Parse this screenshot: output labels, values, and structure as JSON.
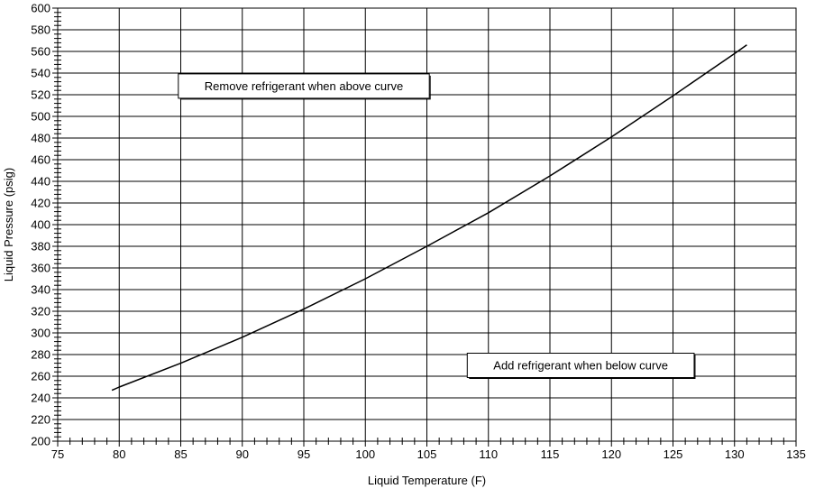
{
  "chart_data": {
    "type": "line",
    "title": "",
    "xlabel": "Liquid Temperature (F)",
    "ylabel": "Liquid Pressure (psig)",
    "xlim": [
      75,
      135
    ],
    "ylim": [
      200,
      600
    ],
    "x_ticks": [
      75,
      80,
      85,
      90,
      95,
      100,
      105,
      110,
      115,
      120,
      125,
      130,
      135
    ],
    "y_ticks": [
      200,
      220,
      240,
      260,
      280,
      300,
      320,
      340,
      360,
      380,
      400,
      420,
      440,
      460,
      480,
      500,
      520,
      540,
      560,
      580,
      600
    ],
    "x_minor_step": 1,
    "y_minor_step": 4,
    "grid": true,
    "legend": "none",
    "line_color": "#000000",
    "series": [
      {
        "x": [
          79.4,
          80,
          85,
          90,
          95,
          100,
          105,
          110,
          115,
          120,
          125,
          130,
          131
        ],
        "y": [
          247,
          250,
          272,
          296,
          322,
          350,
          380,
          411,
          445,
          481,
          519,
          558,
          566
        ]
      }
    ],
    "annotations": [
      {
        "text": "Remove refrigerant when above curve",
        "x": 95,
        "y": 528
      },
      {
        "text": "Add refrigerant when below curve",
        "x": 117.5,
        "y": 270
      }
    ]
  }
}
